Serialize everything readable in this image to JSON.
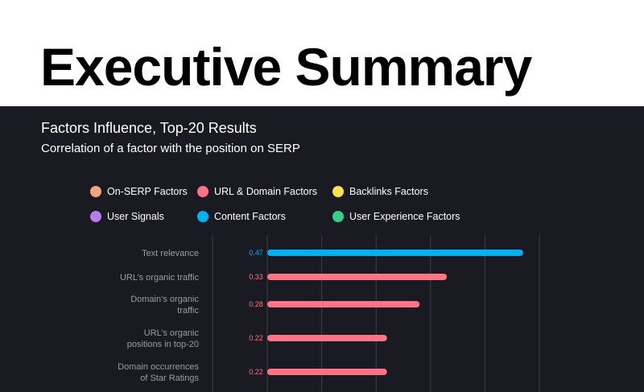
{
  "page": {
    "heading": "Executive Summary"
  },
  "chart_data": {
    "type": "bar",
    "orientation": "horizontal",
    "title": "Factors Influence, Top-20 Results",
    "subtitle": "Correlation of a factor with the position on SERP",
    "legend": [
      {
        "label": "On-SERP Factors",
        "color": "#f4a47c"
      },
      {
        "label": "URL & Domain Factors",
        "color": "#ff7384"
      },
      {
        "label": "Backlinks Factors",
        "color": "#ffe14a"
      },
      {
        "label": "User Signals",
        "color": "#b77bf2"
      },
      {
        "label": "Content Factors",
        "color": "#00b2f4"
      },
      {
        "label": "User Experience Factors",
        "color": "#35d08c"
      }
    ],
    "categories": [
      [
        "Text relevance"
      ],
      [
        "URL’s organic traffic"
      ],
      [
        "Domain’s organic",
        "traffic"
      ],
      [
        "URL’s organic",
        "positions in top-20"
      ],
      [
        "Domain occurrences",
        "of Star Ratings"
      ]
    ],
    "values": [
      0.47,
      0.33,
      0.28,
      0.22,
      0.22
    ],
    "value_labels": [
      "0.47",
      "0.33",
      "0.28",
      "0.22",
      "0.22"
    ],
    "groups": [
      "Content Factors",
      "URL & Domain Factors",
      "URL & Domain Factors",
      "URL & Domain Factors",
      "URL & Domain Factors"
    ],
    "xlim": [
      0,
      0.5
    ],
    "grid": true
  }
}
